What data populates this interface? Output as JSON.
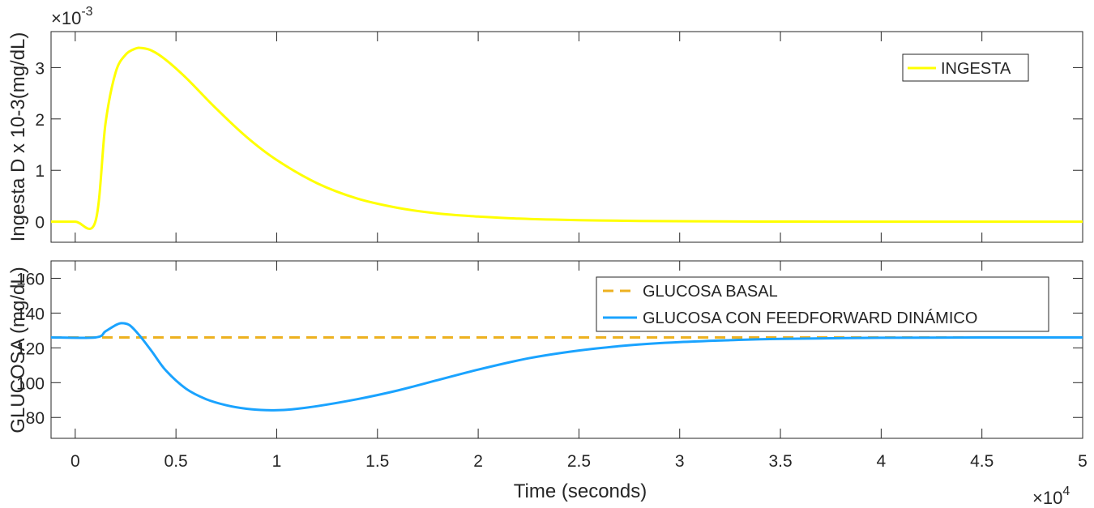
{
  "chart_data": [
    {
      "type": "line",
      "ylabel": "Ingesta D x 10-3(mg/dL)",
      "y_exponent_base": "×10",
      "y_exponent": "-3",
      "xlim": [
        -1200,
        50000
      ],
      "ylim": [
        -0.0004,
        0.0037
      ],
      "x_ticks": [
        0,
        5000,
        10000,
        15000,
        20000,
        25000,
        30000,
        35000,
        40000,
        45000,
        50000
      ],
      "y_ticks": [
        0,
        0.001,
        0.002,
        0.003
      ],
      "y_tick_labels": [
        "0",
        "1",
        "2",
        "3"
      ],
      "grid": false,
      "legend_position": "top-right",
      "series": [
        {
          "name": "INGESTA",
          "color": "#ffff00",
          "style": "solid",
          "x": [
            -1200,
            0,
            1000,
            1500,
            2000,
            2500,
            3000,
            3300,
            3800,
            4500,
            5500,
            7000,
            8500,
            10000,
            12000,
            14000,
            16000,
            18000,
            20000,
            22000,
            25000,
            28000,
            32000,
            36000,
            40000,
            45000,
            50000
          ],
          "y": [
            0,
            0,
            0,
            0.0019,
            0.0029,
            0.00325,
            0.00337,
            0.00338,
            0.00333,
            0.00315,
            0.0028,
            0.0022,
            0.00165,
            0.0012,
            0.00075,
            0.00045,
            0.00027,
            0.00016,
            0.0001,
            6e-05,
            3e-05,
            1.5e-05,
            5e-06,
            2e-06,
            0,
            0,
            0
          ]
        }
      ]
    },
    {
      "type": "line",
      "ylabel": "GLUCOSA (mg/dL)",
      "xlabel": "Time (seconds)",
      "x_exponent_base": "×10",
      "x_exponent": "4",
      "xlim": [
        -1200,
        50000
      ],
      "ylim": [
        68,
        170
      ],
      "x_ticks": [
        0,
        5000,
        10000,
        15000,
        20000,
        25000,
        30000,
        35000,
        40000,
        45000,
        50000
      ],
      "x_tick_labels": [
        "0",
        "0.5",
        "1",
        "1.5",
        "2",
        "2.5",
        "3",
        "3.5",
        "4",
        "4.5",
        "5"
      ],
      "y_ticks": [
        80,
        100,
        120,
        140,
        160
      ],
      "y_tick_labels": [
        "80",
        "100",
        "120",
        "140",
        "160"
      ],
      "grid": false,
      "legend_position": "top-right",
      "series": [
        {
          "name": "GLUCOSA BASAL",
          "color": "#edb120",
          "style": "dashed",
          "x": [
            -1200,
            50000
          ],
          "y": [
            126,
            126
          ]
        },
        {
          "name": "GLUCOSA CON FEEDFORWARD DINÁMICO",
          "color": "#1aa3ff",
          "style": "solid",
          "x": [
            -1200,
            1000,
            1500,
            2000,
            2300,
            2700,
            3200,
            3800,
            4500,
            5500,
            6500,
            7500,
            8500,
            9500,
            10500,
            12000,
            14000,
            16000,
            18000,
            20000,
            22500,
            25000,
            27500,
            30000,
            32500,
            35000,
            40000,
            45000,
            50000
          ],
          "y": [
            126,
            126,
            129.5,
            133,
            134.2,
            133,
            127,
            118,
            107,
            96.5,
            90.5,
            87,
            85,
            84.2,
            84.4,
            86.5,
            90.5,
            95.5,
            101.5,
            107.5,
            114,
            118.5,
            121.5,
            123.3,
            124.4,
            125.2,
            125.8,
            126,
            126
          ]
        }
      ]
    }
  ]
}
